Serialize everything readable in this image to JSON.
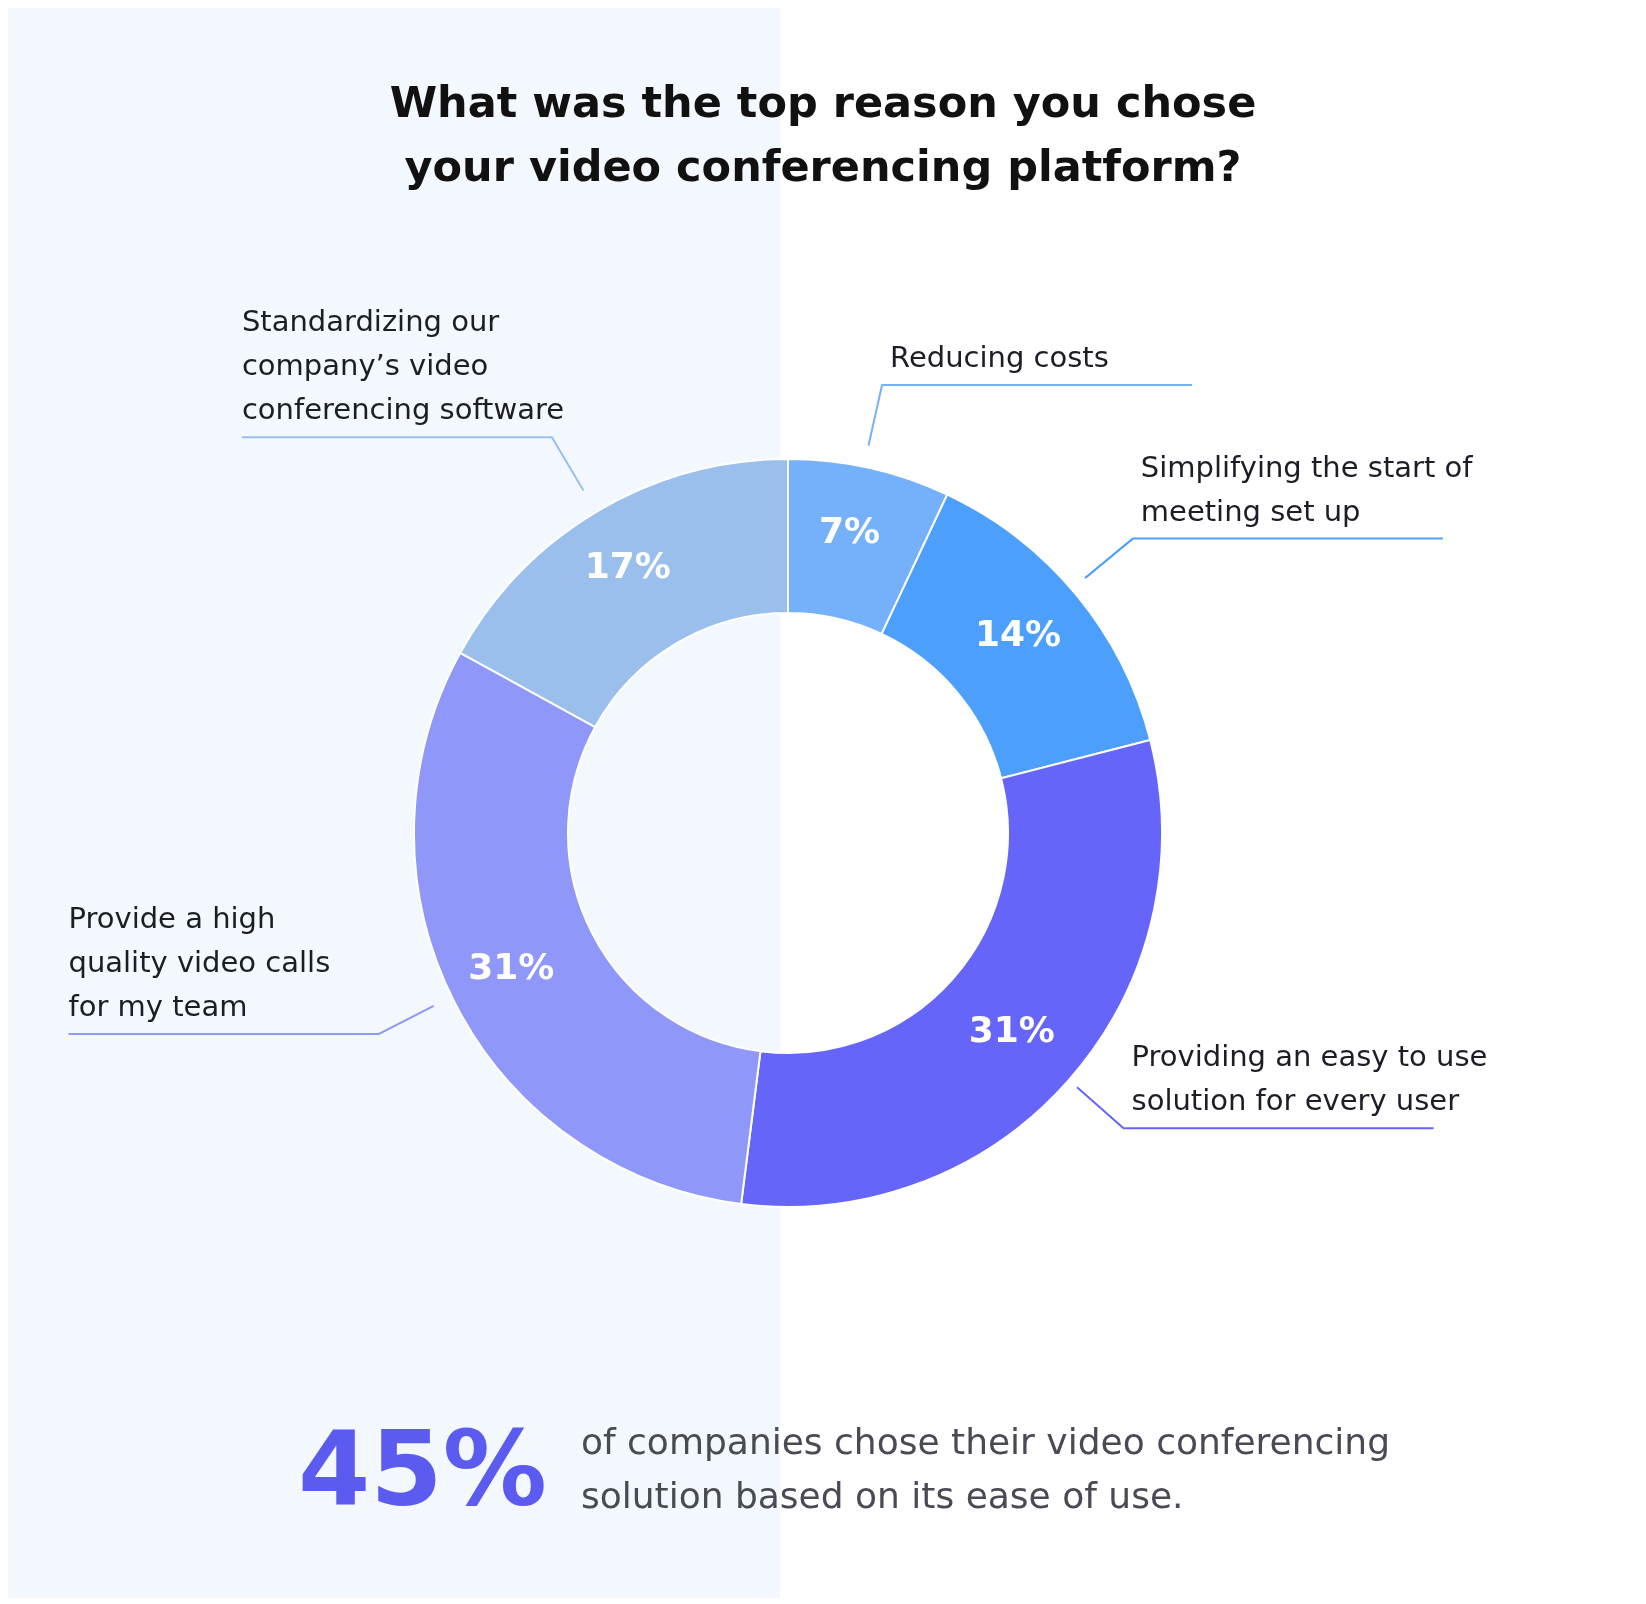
{
  "chart_data": {
    "type": "donut",
    "title": "What was the top reason you chose your video conferencing platform?",
    "categories": [
      "Reducing costs",
      "Simplifying the start of meeting set up",
      "Providing an easy to use solution for every user",
      "Provide a high quality video calls for my team",
      "Standardizing our company’s video conferencing software"
    ],
    "values": [
      7,
      14,
      31,
      31,
      17
    ],
    "colors": [
      "#74b1fa",
      "#4c9ffb",
      "#6565fa",
      "#8f97f8",
      "#9bbfed"
    ],
    "value_labels": [
      "7%",
      "14%",
      "31%",
      "31%",
      "17%"
    ],
    "annotations": [
      "45%",
      "of companies chose their video conferencing solution based on its ease of use."
    ]
  }
}
